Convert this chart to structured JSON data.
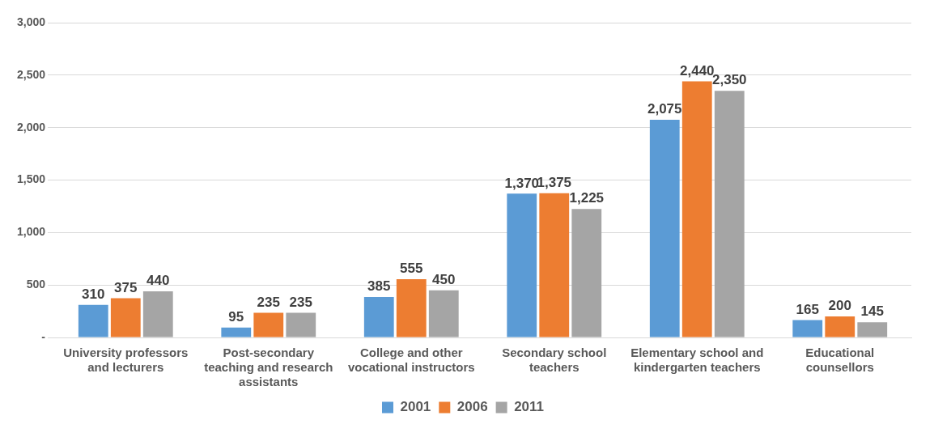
{
  "chart_data": {
    "type": "bar",
    "categories": [
      "University professors and lecturers",
      "Post-secondary teaching and research assistants",
      "College and other vocational instructors",
      "Secondary school teachers",
      "Elementary school and kindergarten teachers",
      "Educational counsellors"
    ],
    "series": [
      {
        "name": "2001",
        "color": "#5b9bd5",
        "values": [
          310,
          95,
          385,
          1370,
          2075,
          165
        ],
        "value_labels": [
          "310",
          "95",
          "385",
          "1,370",
          "2,075",
          "165"
        ]
      },
      {
        "name": "2006",
        "color": "#ed7d31",
        "values": [
          375,
          235,
          555,
          1375,
          2440,
          200
        ],
        "value_labels": [
          "375",
          "235",
          "555",
          "1,375",
          "2,440",
          "200"
        ]
      },
      {
        "name": "2011",
        "color": "#a5a5a5",
        "values": [
          440,
          235,
          450,
          1225,
          2350,
          145
        ],
        "value_labels": [
          "440",
          "235",
          "450",
          "1,225",
          "2,350",
          "145"
        ]
      }
    ],
    "ylim": [
      0,
      3000
    ],
    "yticks": [
      {
        "value": 0,
        "label": "-"
      },
      500,
      {
        "value": 1000,
        "label": "1,000"
      },
      {
        "value": 1500,
        "label": "1,500"
      },
      {
        "value": 2000,
        "label": "2,000"
      },
      {
        "value": 2500,
        "label": "2,500"
      },
      {
        "value": 3000,
        "label": "3,000"
      }
    ],
    "grid": "y",
    "legend": "bottom"
  }
}
